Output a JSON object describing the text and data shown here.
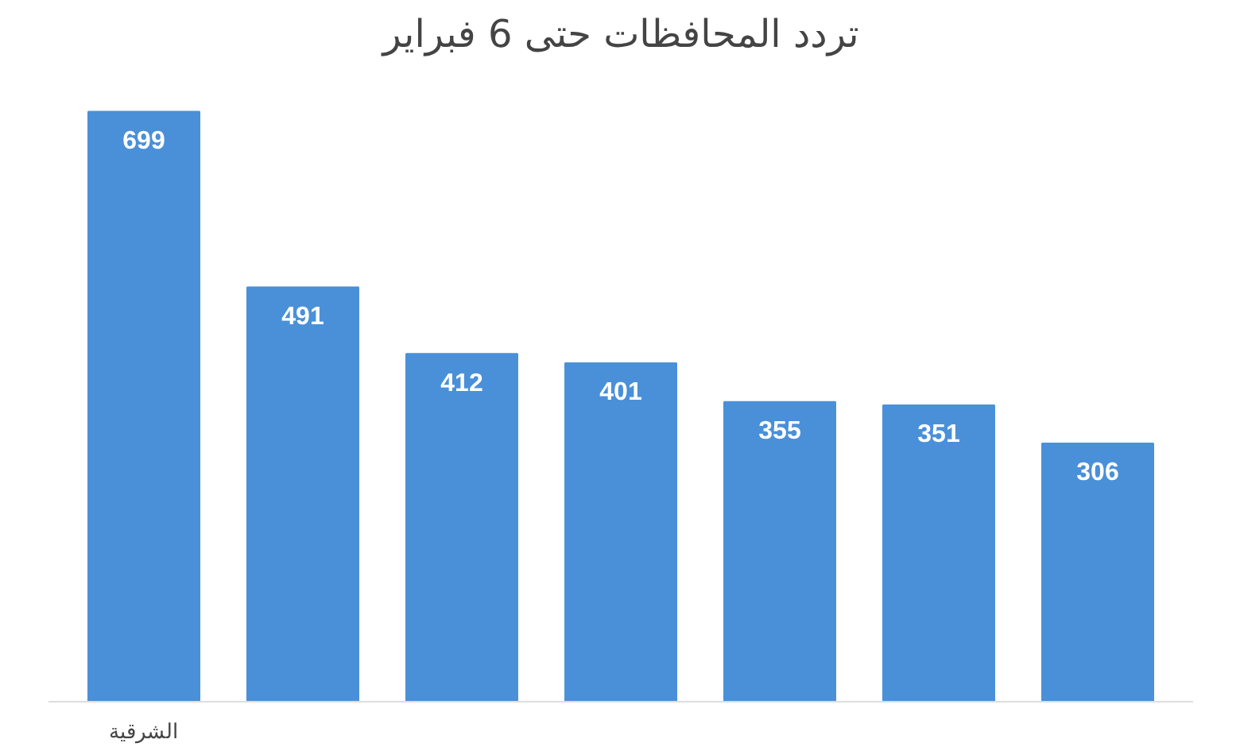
{
  "chart_data": {
    "type": "bar",
    "title": "تردد المحافظات حتى 6 فبراير",
    "categories": [
      "الشرقية",
      null,
      null,
      null,
      null,
      null,
      null
    ],
    "values": [
      699,
      491,
      412,
      401,
      355,
      351,
      306
    ],
    "color": "#4a90d9",
    "data_labels": true
  }
}
